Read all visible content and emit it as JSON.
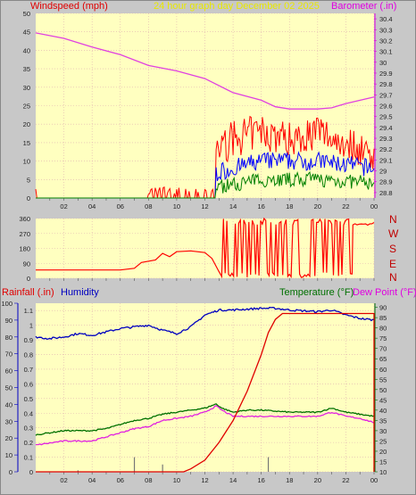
{
  "header": {
    "left_title": "Windspeed (mph)",
    "center_title": "24 hour graph day   December 02 2025",
    "right_title": "Barometer (.in)"
  },
  "middle": {
    "compass": [
      "N",
      "W",
      "S",
      "E",
      "N"
    ]
  },
  "lower": {
    "left_title_1": "Rainfall (.in)",
    "left_title_2": "Humidity",
    "right_title_1": "Temperature (°F)",
    "right_title_2": "Dew Point (°F)"
  },
  "colors": {
    "background": "#c8c8c8",
    "plot_bg": "#ffffc0",
    "grid": "#e0b0b0",
    "wind": "#ff0000",
    "wind_avg": "#0000ff",
    "wind_low": "#008000",
    "baro": "#e040e0",
    "direction": "#ff0000",
    "rain": "#e00000",
    "humidity": "#0000c0",
    "temperature": "#007000",
    "dewpoint": "#e020e0",
    "title_red": "#e00000",
    "title_yellow": "#e8e800",
    "title_magenta": "#e000e0",
    "title_blue": "#0000c0",
    "title_green": "#007000"
  },
  "chart_data": [
    {
      "type": "line",
      "name": "wind_barometer",
      "x_ticks": [
        "02",
        "04",
        "06",
        "08",
        "10",
        "12",
        "14",
        "16",
        "18",
        "20",
        "22",
        "00"
      ],
      "y_left_ticks": [
        "0",
        "5",
        "10",
        "15",
        "20",
        "25",
        "30",
        "35",
        "40",
        "45",
        "50"
      ],
      "y_left_range": [
        0,
        50
      ],
      "y_right_ticks": [
        "28.8",
        "28.9",
        "29",
        "29.1",
        "29.2",
        "29.3",
        "29.4",
        "29.5",
        "29.6",
        "29.7",
        "29.8",
        "29.9",
        "30",
        "30.1",
        "30.2",
        "30.3",
        "30.4"
      ],
      "y_right_range": [
        28.75,
        30.45
      ],
      "barometer": [
        [
          0,
          30.27
        ],
        [
          2,
          30.22
        ],
        [
          4,
          30.14
        ],
        [
          6,
          30.07
        ],
        [
          8,
          29.97
        ],
        [
          10,
          29.92
        ],
        [
          12,
          29.85
        ],
        [
          14,
          29.72
        ],
        [
          16,
          29.65
        ],
        [
          17,
          29.59
        ],
        [
          18,
          29.57
        ],
        [
          20,
          29.57
        ],
        [
          21,
          29.58
        ],
        [
          22,
          29.62
        ],
        [
          24,
          29.68
        ]
      ],
      "wind_profile": {
        "calm_until_hour": 12.8,
        "gust_levels": [
          [
            13,
            13
          ],
          [
            14,
            16
          ],
          [
            16,
            18
          ],
          [
            18,
            16
          ],
          [
            20,
            18
          ],
          [
            22,
            15
          ],
          [
            24,
            12
          ]
        ],
        "avg_levels": [
          [
            13,
            7
          ],
          [
            16,
            10
          ],
          [
            20,
            10
          ],
          [
            24,
            8
          ]
        ],
        "low_levels": [
          [
            13,
            3
          ],
          [
            16,
            5
          ],
          [
            20,
            5
          ],
          [
            24,
            4
          ]
        ]
      }
    },
    {
      "type": "line",
      "name": "wind_direction",
      "y_ticks": [
        "0",
        "90",
        "180",
        "270",
        "360"
      ],
      "y_range": [
        0,
        360
      ],
      "direction": [
        [
          0,
          50
        ],
        [
          6,
          50
        ],
        [
          7,
          60
        ],
        [
          7.5,
          95
        ],
        [
          8.5,
          110
        ],
        [
          9,
          150
        ],
        [
          9.5,
          130
        ],
        [
          10,
          160
        ],
        [
          11,
          165
        ],
        [
          12,
          155
        ],
        [
          12.5,
          120
        ],
        [
          13,
          40
        ],
        [
          13.2,
          10
        ]
      ],
      "erratic_from_hour": 13.2,
      "steady_from_hour": 22.5,
      "steady_value": 330
    },
    {
      "type": "line",
      "name": "rain_humidity_temp",
      "y_left_rain_ticks": [
        "0",
        "0.1",
        "0.2",
        "0.3",
        "0.4",
        "0.5",
        "0.6",
        "0.7",
        "0.8",
        "0.9",
        "1",
        "1.1"
      ],
      "y_left_rain_range": [
        0,
        1.15
      ],
      "y_left_humidity_ticks": [
        "0",
        "10",
        "20",
        "30",
        "40",
        "50",
        "60",
        "70",
        "80",
        "90",
        "100"
      ],
      "y_left_humidity_range": [
        0,
        100
      ],
      "y_right_ticks": [
        "10",
        "15",
        "20",
        "25",
        "30",
        "35",
        "40",
        "45",
        "50",
        "55",
        "60",
        "65",
        "70",
        "75",
        "80",
        "85",
        "90"
      ],
      "y_right_range": [
        10,
        92
      ],
      "rainfall": [
        [
          0,
          0
        ],
        [
          10.5,
          0
        ],
        [
          11,
          0.02
        ],
        [
          12,
          0.08
        ],
        [
          13,
          0.2
        ],
        [
          14,
          0.35
        ],
        [
          15,
          0.55
        ],
        [
          16,
          0.8
        ],
        [
          16.5,
          0.95
        ],
        [
          17,
          1.04
        ],
        [
          17.5,
          1.08
        ],
        [
          24,
          1.08
        ],
        [
          24,
          0
        ]
      ],
      "humidity": [
        [
          0,
          80
        ],
        [
          1,
          79
        ],
        [
          2,
          80
        ],
        [
          3,
          82
        ],
        [
          4,
          81
        ],
        [
          5,
          83
        ],
        [
          6,
          85
        ],
        [
          7,
          86
        ],
        [
          8,
          87
        ],
        [
          9,
          84
        ],
        [
          10,
          82
        ],
        [
          11,
          86
        ],
        [
          12,
          93
        ],
        [
          13,
          96
        ],
        [
          14,
          96
        ],
        [
          16,
          97
        ],
        [
          17,
          97
        ],
        [
          18,
          96
        ],
        [
          20,
          95
        ],
        [
          21,
          96
        ],
        [
          22,
          93
        ],
        [
          23,
          91
        ],
        [
          24,
          90
        ]
      ],
      "temperature": [
        [
          0,
          28
        ],
        [
          1,
          29
        ],
        [
          2,
          30
        ],
        [
          3,
          30
        ],
        [
          4,
          30
        ],
        [
          5,
          31
        ],
        [
          6,
          33
        ],
        [
          7,
          35
        ],
        [
          8,
          36
        ],
        [
          9,
          38
        ],
        [
          10,
          39
        ],
        [
          11,
          40
        ],
        [
          12,
          41
        ],
        [
          12.8,
          43
        ],
        [
          13.2,
          41
        ],
        [
          14,
          39
        ],
        [
          15,
          40
        ],
        [
          16,
          40
        ],
        [
          18,
          39
        ],
        [
          20,
          39
        ],
        [
          21,
          41
        ],
        [
          22,
          39
        ],
        [
          23,
          38
        ],
        [
          24,
          37
        ]
      ],
      "dewpoint": [
        [
          0,
          23
        ],
        [
          1,
          24
        ],
        [
          2,
          25
        ],
        [
          3,
          25
        ],
        [
          4,
          25
        ],
        [
          5,
          27
        ],
        [
          6,
          29
        ],
        [
          7,
          31
        ],
        [
          8,
          32
        ],
        [
          9,
          35
        ],
        [
          10,
          36
        ],
        [
          11,
          37
        ],
        [
          12,
          39
        ],
        [
          12.8,
          42
        ],
        [
          13.2,
          40
        ],
        [
          14,
          37
        ],
        [
          15,
          37
        ],
        [
          16,
          37
        ],
        [
          18,
          37
        ],
        [
          20,
          37
        ],
        [
          21,
          39
        ],
        [
          22,
          37
        ],
        [
          23,
          36
        ],
        [
          24,
          34
        ]
      ],
      "rain_rate_bars": [
        [
          3,
          0.01
        ],
        [
          7,
          0.1
        ],
        [
          9,
          0.05
        ],
        [
          16.5,
          0.1
        ],
        [
          24,
          0.03
        ]
      ]
    }
  ]
}
